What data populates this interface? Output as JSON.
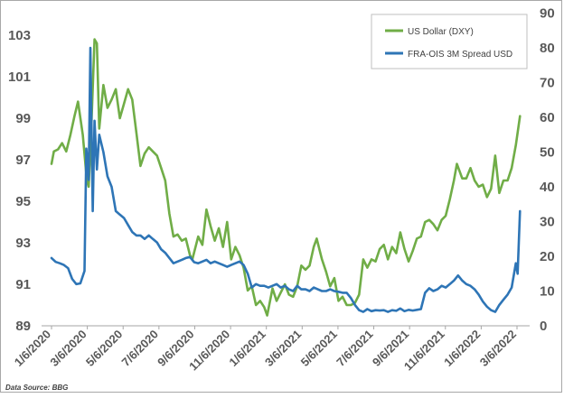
{
  "source_note": "Data Source: BBG",
  "chart_data": {
    "type": "line",
    "title": "",
    "xlabel": "",
    "x_tick_labels": [
      "1/6/2020",
      "3/6/2020",
      "5/6/2020",
      "7/6/2020",
      "9/6/2020",
      "11/6/2020",
      "1/6/2021",
      "3/6/2021",
      "5/6/2021",
      "7/6/2021",
      "9/6/2021",
      "11/6/2021",
      "1/6/2022",
      "3/6/2022"
    ],
    "y_left": {
      "ylim": [
        89,
        104
      ],
      "ticks": [
        "103",
        "101",
        "99",
        "97",
        "95",
        "93",
        "91",
        "89"
      ]
    },
    "y_right": {
      "ylim": [
        0,
        90
      ],
      "ticks": [
        "90",
        "80",
        "70",
        "60",
        "50",
        "40",
        "30",
        "20",
        "10",
        "0"
      ]
    },
    "legend_position": "top-right",
    "grid": false,
    "series": [
      {
        "name": "US Dollar (DXY)",
        "axis": "left",
        "color": "#70ad47",
        "points": [
          [
            "2020-01-06",
            96.8
          ],
          [
            "2020-01-10",
            97.4
          ],
          [
            "2020-01-17",
            97.5
          ],
          [
            "2020-01-24",
            97.8
          ],
          [
            "2020-01-31",
            97.4
          ],
          [
            "2020-02-07",
            98.2
          ],
          [
            "2020-02-14",
            99.1
          ],
          [
            "2020-02-20",
            99.8
          ],
          [
            "2020-02-28",
            98.2
          ],
          [
            "2020-03-06",
            96.0
          ],
          [
            "2020-03-09",
            95.7
          ],
          [
            "2020-03-13",
            98.2
          ],
          [
            "2020-03-19",
            102.8
          ],
          [
            "2020-03-23",
            102.6
          ],
          [
            "2020-03-27",
            98.5
          ],
          [
            "2020-04-03",
            100.6
          ],
          [
            "2020-04-10",
            99.5
          ],
          [
            "2020-04-17",
            99.9
          ],
          [
            "2020-04-24",
            100.4
          ],
          [
            "2020-05-01",
            99.0
          ],
          [
            "2020-05-08",
            99.7
          ],
          [
            "2020-05-15",
            100.4
          ],
          [
            "2020-05-22",
            99.9
          ],
          [
            "2020-05-29",
            98.3
          ],
          [
            "2020-06-05",
            96.7
          ],
          [
            "2020-06-12",
            97.3
          ],
          [
            "2020-06-19",
            97.6
          ],
          [
            "2020-06-26",
            97.4
          ],
          [
            "2020-07-03",
            97.2
          ],
          [
            "2020-07-10",
            96.6
          ],
          [
            "2020-07-17",
            96.0
          ],
          [
            "2020-07-24",
            94.4
          ],
          [
            "2020-07-31",
            93.3
          ],
          [
            "2020-08-07",
            93.4
          ],
          [
            "2020-08-14",
            93.1
          ],
          [
            "2020-08-21",
            93.2
          ],
          [
            "2020-08-28",
            92.4
          ],
          [
            "2020-09-01",
            92.2
          ],
          [
            "2020-09-11",
            93.3
          ],
          [
            "2020-09-18",
            92.9
          ],
          [
            "2020-09-25",
            94.6
          ],
          [
            "2020-10-02",
            93.8
          ],
          [
            "2020-10-09",
            93.1
          ],
          [
            "2020-10-16",
            93.7
          ],
          [
            "2020-10-23",
            92.8
          ],
          [
            "2020-10-30",
            94.0
          ],
          [
            "2020-11-06",
            92.2
          ],
          [
            "2020-11-13",
            92.8
          ],
          [
            "2020-11-20",
            92.4
          ],
          [
            "2020-11-27",
            91.8
          ],
          [
            "2020-12-04",
            90.7
          ],
          [
            "2020-12-11",
            90.9
          ],
          [
            "2020-12-18",
            90.0
          ],
          [
            "2020-12-25",
            90.2
          ],
          [
            "2021-01-01",
            89.9
          ],
          [
            "2021-01-06",
            89.5
          ],
          [
            "2021-01-15",
            90.8
          ],
          [
            "2021-01-22",
            90.2
          ],
          [
            "2021-01-29",
            90.6
          ],
          [
            "2021-02-05",
            91.0
          ],
          [
            "2021-02-12",
            90.5
          ],
          [
            "2021-02-19",
            90.4
          ],
          [
            "2021-02-26",
            90.9
          ],
          [
            "2021-03-05",
            91.9
          ],
          [
            "2021-03-12",
            91.7
          ],
          [
            "2021-03-19",
            91.9
          ],
          [
            "2021-03-26",
            92.8
          ],
          [
            "2021-03-31",
            93.2
          ],
          [
            "2021-04-09",
            92.2
          ],
          [
            "2021-04-16",
            91.6
          ],
          [
            "2021-04-23",
            90.9
          ],
          [
            "2021-04-30",
            91.3
          ],
          [
            "2021-05-07",
            90.2
          ],
          [
            "2021-05-14",
            90.4
          ],
          [
            "2021-05-21",
            90.0
          ],
          [
            "2021-05-28",
            90.0
          ],
          [
            "2021-06-04",
            90.1
          ],
          [
            "2021-06-11",
            90.5
          ],
          [
            "2021-06-18",
            92.2
          ],
          [
            "2021-06-25",
            91.8
          ],
          [
            "2021-07-02",
            92.2
          ],
          [
            "2021-07-09",
            92.1
          ],
          [
            "2021-07-16",
            92.7
          ],
          [
            "2021-07-23",
            92.9
          ],
          [
            "2021-07-30",
            92.2
          ],
          [
            "2021-08-06",
            92.8
          ],
          [
            "2021-08-13",
            92.5
          ],
          [
            "2021-08-20",
            93.5
          ],
          [
            "2021-08-27",
            92.7
          ],
          [
            "2021-09-03",
            92.1
          ],
          [
            "2021-09-10",
            92.6
          ],
          [
            "2021-09-17",
            93.2
          ],
          [
            "2021-09-24",
            93.3
          ],
          [
            "2021-10-01",
            94.0
          ],
          [
            "2021-10-08",
            94.1
          ],
          [
            "2021-10-15",
            93.9
          ],
          [
            "2021-10-22",
            93.6
          ],
          [
            "2021-10-29",
            94.1
          ],
          [
            "2021-11-05",
            94.3
          ],
          [
            "2021-11-12",
            95.1
          ],
          [
            "2021-11-19",
            96.0
          ],
          [
            "2021-11-24",
            96.8
          ],
          [
            "2021-12-03",
            96.1
          ],
          [
            "2021-12-10",
            96.1
          ],
          [
            "2021-12-17",
            96.6
          ],
          [
            "2021-12-24",
            96.0
          ],
          [
            "2021-12-31",
            95.7
          ],
          [
            "2022-01-07",
            95.8
          ],
          [
            "2022-01-14",
            95.2
          ],
          [
            "2022-01-21",
            95.6
          ],
          [
            "2022-01-28",
            97.2
          ],
          [
            "2022-02-04",
            95.4
          ],
          [
            "2022-02-11",
            96.0
          ],
          [
            "2022-02-18",
            96.0
          ],
          [
            "2022-02-25",
            96.6
          ],
          [
            "2022-03-04",
            97.7
          ],
          [
            "2022-03-11",
            99.1
          ]
        ]
      },
      {
        "name": "FRA-OIS 3M Spread USD",
        "axis": "right",
        "color": "#2e75b6",
        "points": [
          [
            "2020-01-06",
            19.5
          ],
          [
            "2020-01-13",
            18.4
          ],
          [
            "2020-01-20",
            18.0
          ],
          [
            "2020-01-27",
            17.5
          ],
          [
            "2020-02-03",
            16.6
          ],
          [
            "2020-02-10",
            13.5
          ],
          [
            "2020-02-17",
            12.0
          ],
          [
            "2020-02-24",
            12.2
          ],
          [
            "2020-03-02",
            15.8
          ],
          [
            "2020-03-05",
            51.0
          ],
          [
            "2020-03-09",
            42.0
          ],
          [
            "2020-03-12",
            80.0
          ],
          [
            "2020-03-16",
            33.0
          ],
          [
            "2020-03-19",
            59.0
          ],
          [
            "2020-03-23",
            45.0
          ],
          [
            "2020-03-27",
            55.0
          ],
          [
            "2020-04-03",
            50.0
          ],
          [
            "2020-04-10",
            43.0
          ],
          [
            "2020-04-17",
            40.0
          ],
          [
            "2020-04-24",
            33.0
          ],
          [
            "2020-05-01",
            32.0
          ],
          [
            "2020-05-08",
            31.0
          ],
          [
            "2020-05-15",
            29.0
          ],
          [
            "2020-05-22",
            27.0
          ],
          [
            "2020-05-29",
            26.0
          ],
          [
            "2020-06-05",
            26.0
          ],
          [
            "2020-06-12",
            25.0
          ],
          [
            "2020-06-19",
            26.0
          ],
          [
            "2020-06-26",
            25.0
          ],
          [
            "2020-07-03",
            24.0
          ],
          [
            "2020-07-10",
            22.0
          ],
          [
            "2020-07-17",
            21.0
          ],
          [
            "2020-07-24",
            19.5
          ],
          [
            "2020-07-31",
            18.0
          ],
          [
            "2020-08-07",
            18.5
          ],
          [
            "2020-08-14",
            19.0
          ],
          [
            "2020-08-21",
            19.5
          ],
          [
            "2020-08-28",
            19.8
          ],
          [
            "2020-09-04",
            18.3
          ],
          [
            "2020-09-11",
            18.0
          ],
          [
            "2020-09-18",
            18.5
          ],
          [
            "2020-09-25",
            19.0
          ],
          [
            "2020-10-02",
            18.0
          ],
          [
            "2020-10-09",
            18.5
          ],
          [
            "2020-10-16",
            18.0
          ],
          [
            "2020-10-23",
            17.5
          ],
          [
            "2020-10-30",
            17.0
          ],
          [
            "2020-11-06",
            17.5
          ],
          [
            "2020-11-13",
            18.0
          ],
          [
            "2020-11-20",
            18.5
          ],
          [
            "2020-11-27",
            17.5
          ],
          [
            "2020-12-04",
            15.0
          ],
          [
            "2020-12-11",
            11.0
          ],
          [
            "2020-12-18",
            12.0
          ],
          [
            "2020-12-25",
            11.5
          ],
          [
            "2021-01-01",
            11.5
          ],
          [
            "2021-01-08",
            11.0
          ],
          [
            "2021-01-15",
            11.5
          ],
          [
            "2021-01-22",
            12.0
          ],
          [
            "2021-01-29",
            11.0
          ],
          [
            "2021-02-05",
            11.5
          ],
          [
            "2021-02-12",
            10.5
          ],
          [
            "2021-02-19",
            10.0
          ],
          [
            "2021-02-26",
            11.5
          ],
          [
            "2021-03-05",
            10.5
          ],
          [
            "2021-03-12",
            10.5
          ],
          [
            "2021-03-19",
            10.0
          ],
          [
            "2021-03-26",
            11.0
          ],
          [
            "2021-04-02",
            10.5
          ],
          [
            "2021-04-09",
            10.0
          ],
          [
            "2021-04-16",
            10.0
          ],
          [
            "2021-04-23",
            10.5
          ],
          [
            "2021-04-30",
            10.0
          ],
          [
            "2021-05-07",
            9.8
          ],
          [
            "2021-05-14",
            9.5
          ],
          [
            "2021-05-21",
            9.5
          ],
          [
            "2021-05-28",
            8.0
          ],
          [
            "2021-06-04",
            6.0
          ],
          [
            "2021-06-11",
            4.5
          ],
          [
            "2021-06-18",
            4.0
          ],
          [
            "2021-06-25",
            4.8
          ],
          [
            "2021-07-02",
            4.2
          ],
          [
            "2021-07-09",
            4.5
          ],
          [
            "2021-07-16",
            4.4
          ],
          [
            "2021-07-23",
            4.5
          ],
          [
            "2021-07-30",
            4.0
          ],
          [
            "2021-08-06",
            4.5
          ],
          [
            "2021-08-13",
            4.3
          ],
          [
            "2021-08-20",
            5.0
          ],
          [
            "2021-08-27",
            4.2
          ],
          [
            "2021-09-03",
            4.6
          ],
          [
            "2021-09-10",
            4.4
          ],
          [
            "2021-09-17",
            4.6
          ],
          [
            "2021-09-24",
            4.8
          ],
          [
            "2021-10-01",
            9.5
          ],
          [
            "2021-10-08",
            10.8
          ],
          [
            "2021-10-15",
            10.0
          ],
          [
            "2021-10-22",
            10.5
          ],
          [
            "2021-10-29",
            11.5
          ],
          [
            "2021-11-05",
            11.0
          ],
          [
            "2021-11-12",
            12.0
          ],
          [
            "2021-11-19",
            13.0
          ],
          [
            "2021-11-26",
            14.5
          ],
          [
            "2021-12-03",
            13.0
          ],
          [
            "2021-12-10",
            12.0
          ],
          [
            "2021-12-17",
            11.5
          ],
          [
            "2021-12-24",
            10.5
          ],
          [
            "2021-12-31",
            9.0
          ],
          [
            "2022-01-07",
            7.0
          ],
          [
            "2022-01-14",
            5.5
          ],
          [
            "2022-01-21",
            4.5
          ],
          [
            "2022-01-28",
            4.0
          ],
          [
            "2022-02-04",
            6.0
          ],
          [
            "2022-02-11",
            7.5
          ],
          [
            "2022-02-18",
            9.0
          ],
          [
            "2022-02-25",
            11.0
          ],
          [
            "2022-03-04",
            18.0
          ],
          [
            "2022-03-07",
            15.0
          ],
          [
            "2022-03-09",
            24.0
          ],
          [
            "2022-03-11",
            33.0
          ]
        ]
      }
    ]
  }
}
